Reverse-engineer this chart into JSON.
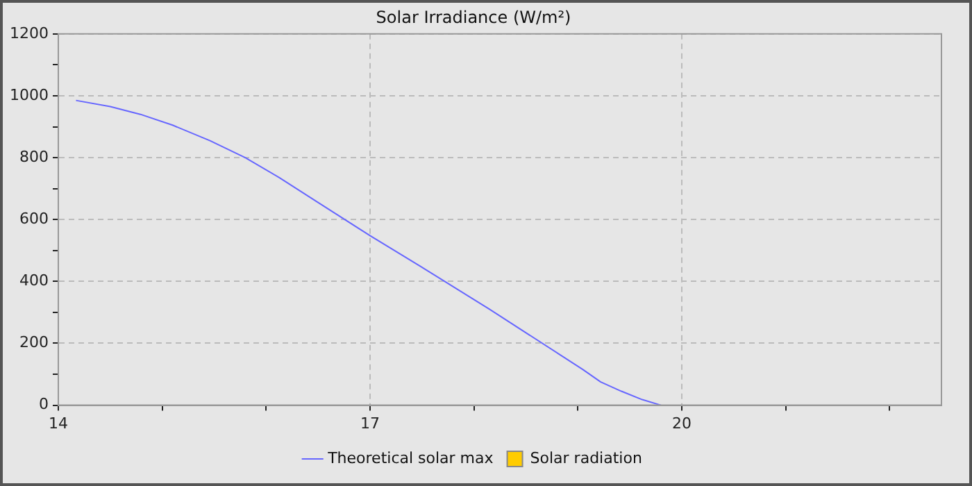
{
  "chart_data": {
    "type": "line",
    "title": "Solar Irradiance (W/m²)",
    "xlim": [
      14,
      22.5
    ],
    "xticks": [
      14,
      {
        "value": 15,
        "label": null
      },
      {
        "value": 16,
        "label": null
      },
      17,
      {
        "value": 18,
        "label": null
      },
      {
        "value": 19,
        "label": null
      },
      20,
      {
        "value": 21,
        "label": null
      },
      {
        "value": 22,
        "label": null
      }
    ],
    "ylim": [
      0,
      1200
    ],
    "yticks": [
      0,
      {
        "value": 100,
        "label": null
      },
      200,
      {
        "value": 300,
        "label": null
      },
      400,
      {
        "value": 500,
        "label": null
      },
      600,
      {
        "value": 700,
        "label": null
      },
      800,
      {
        "value": 900,
        "label": null
      },
      1000,
      {
        "value": 1100,
        "label": null
      },
      1200
    ],
    "grid": true,
    "legend": "bottom",
    "marker": "none",
    "line_style": "solid",
    "series": [
      {
        "name": "Theoretical solar max",
        "color": "#6666ff",
        "x": [
          14.17,
          14.5,
          14.79,
          15.1,
          15.46,
          15.8,
          16.13,
          16.5,
          17,
          17.48,
          18.15,
          18.82,
          19.05,
          19.22,
          19.42,
          19.62,
          19.8
        ],
        "values": [
          985,
          965,
          940,
          905,
          855,
          800,
          735,
          655,
          548,
          450,
          310,
          165,
          115,
          75,
          45,
          18,
          0
        ]
      },
      {
        "name": "Solar radiation",
        "type": "bar",
        "color": "#ffcc00"
      }
    ]
  }
}
